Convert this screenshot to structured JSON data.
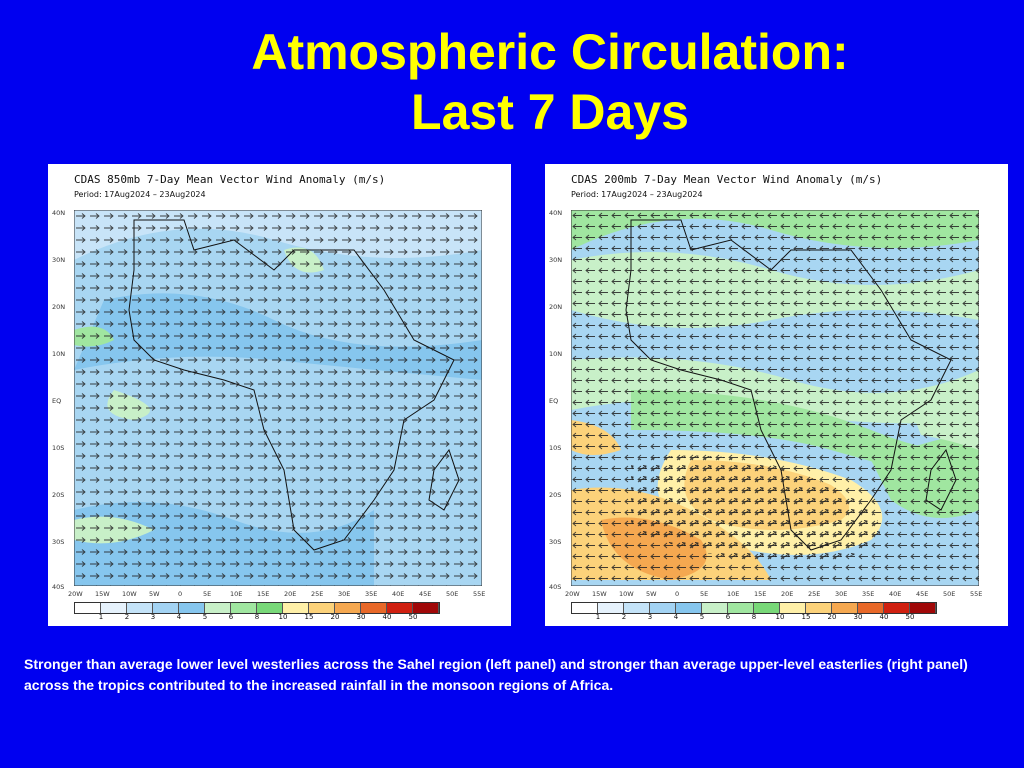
{
  "slide": {
    "title_line1": "Atmospheric Circulation:",
    "title_line2": "Last 7 Days",
    "caption": "Stronger than average lower level westerlies across the Sahel region (left panel) and stronger than average upper-level easterlies (right panel) across the tropics contributed to the increased rainfall in the monsoon regions of Africa."
  },
  "panels": [
    {
      "title": "CDAS 850mb 7-Day Mean Vector Wind Anomaly (m/s)",
      "period": "Period: 17Aug2024 – 23Aug2024",
      "dominant_flow": "westerly over Sahel"
    },
    {
      "title": "CDAS 200mb 7-Day Mean Vector Wind Anomaly (m/s)",
      "period": "Period: 17Aug2024 – 23Aug2024",
      "dominant_flow": "easterly across tropics"
    }
  ],
  "axes": {
    "lat_labels": [
      "40N",
      "30N",
      "20N",
      "10N",
      "EQ",
      "10S",
      "20S",
      "30S",
      "40S"
    ],
    "lon_labels": [
      "20W",
      "15W",
      "10W",
      "5W",
      "0",
      "5E",
      "10E",
      "15E",
      "20E",
      "25E",
      "30E",
      "35E",
      "40E",
      "45E",
      "50E",
      "55E"
    ]
  },
  "colorbar": {
    "labels": [
      "1",
      "2",
      "3",
      "4",
      "5",
      "6",
      "8",
      "10",
      "15",
      "20",
      "30",
      "40",
      "50"
    ],
    "colors": [
      "#ffffff",
      "#e6f2fc",
      "#c4e3f8",
      "#a3d3f3",
      "#86c6ee",
      "#c8f0c8",
      "#a0e6a0",
      "#78d878",
      "#fff0a8",
      "#fcd27a",
      "#f5a850",
      "#e86828",
      "#d02010",
      "#a00808"
    ]
  },
  "colors": {
    "background": "#0000f0",
    "title": "#ffff00",
    "caption": "#ffffff"
  }
}
